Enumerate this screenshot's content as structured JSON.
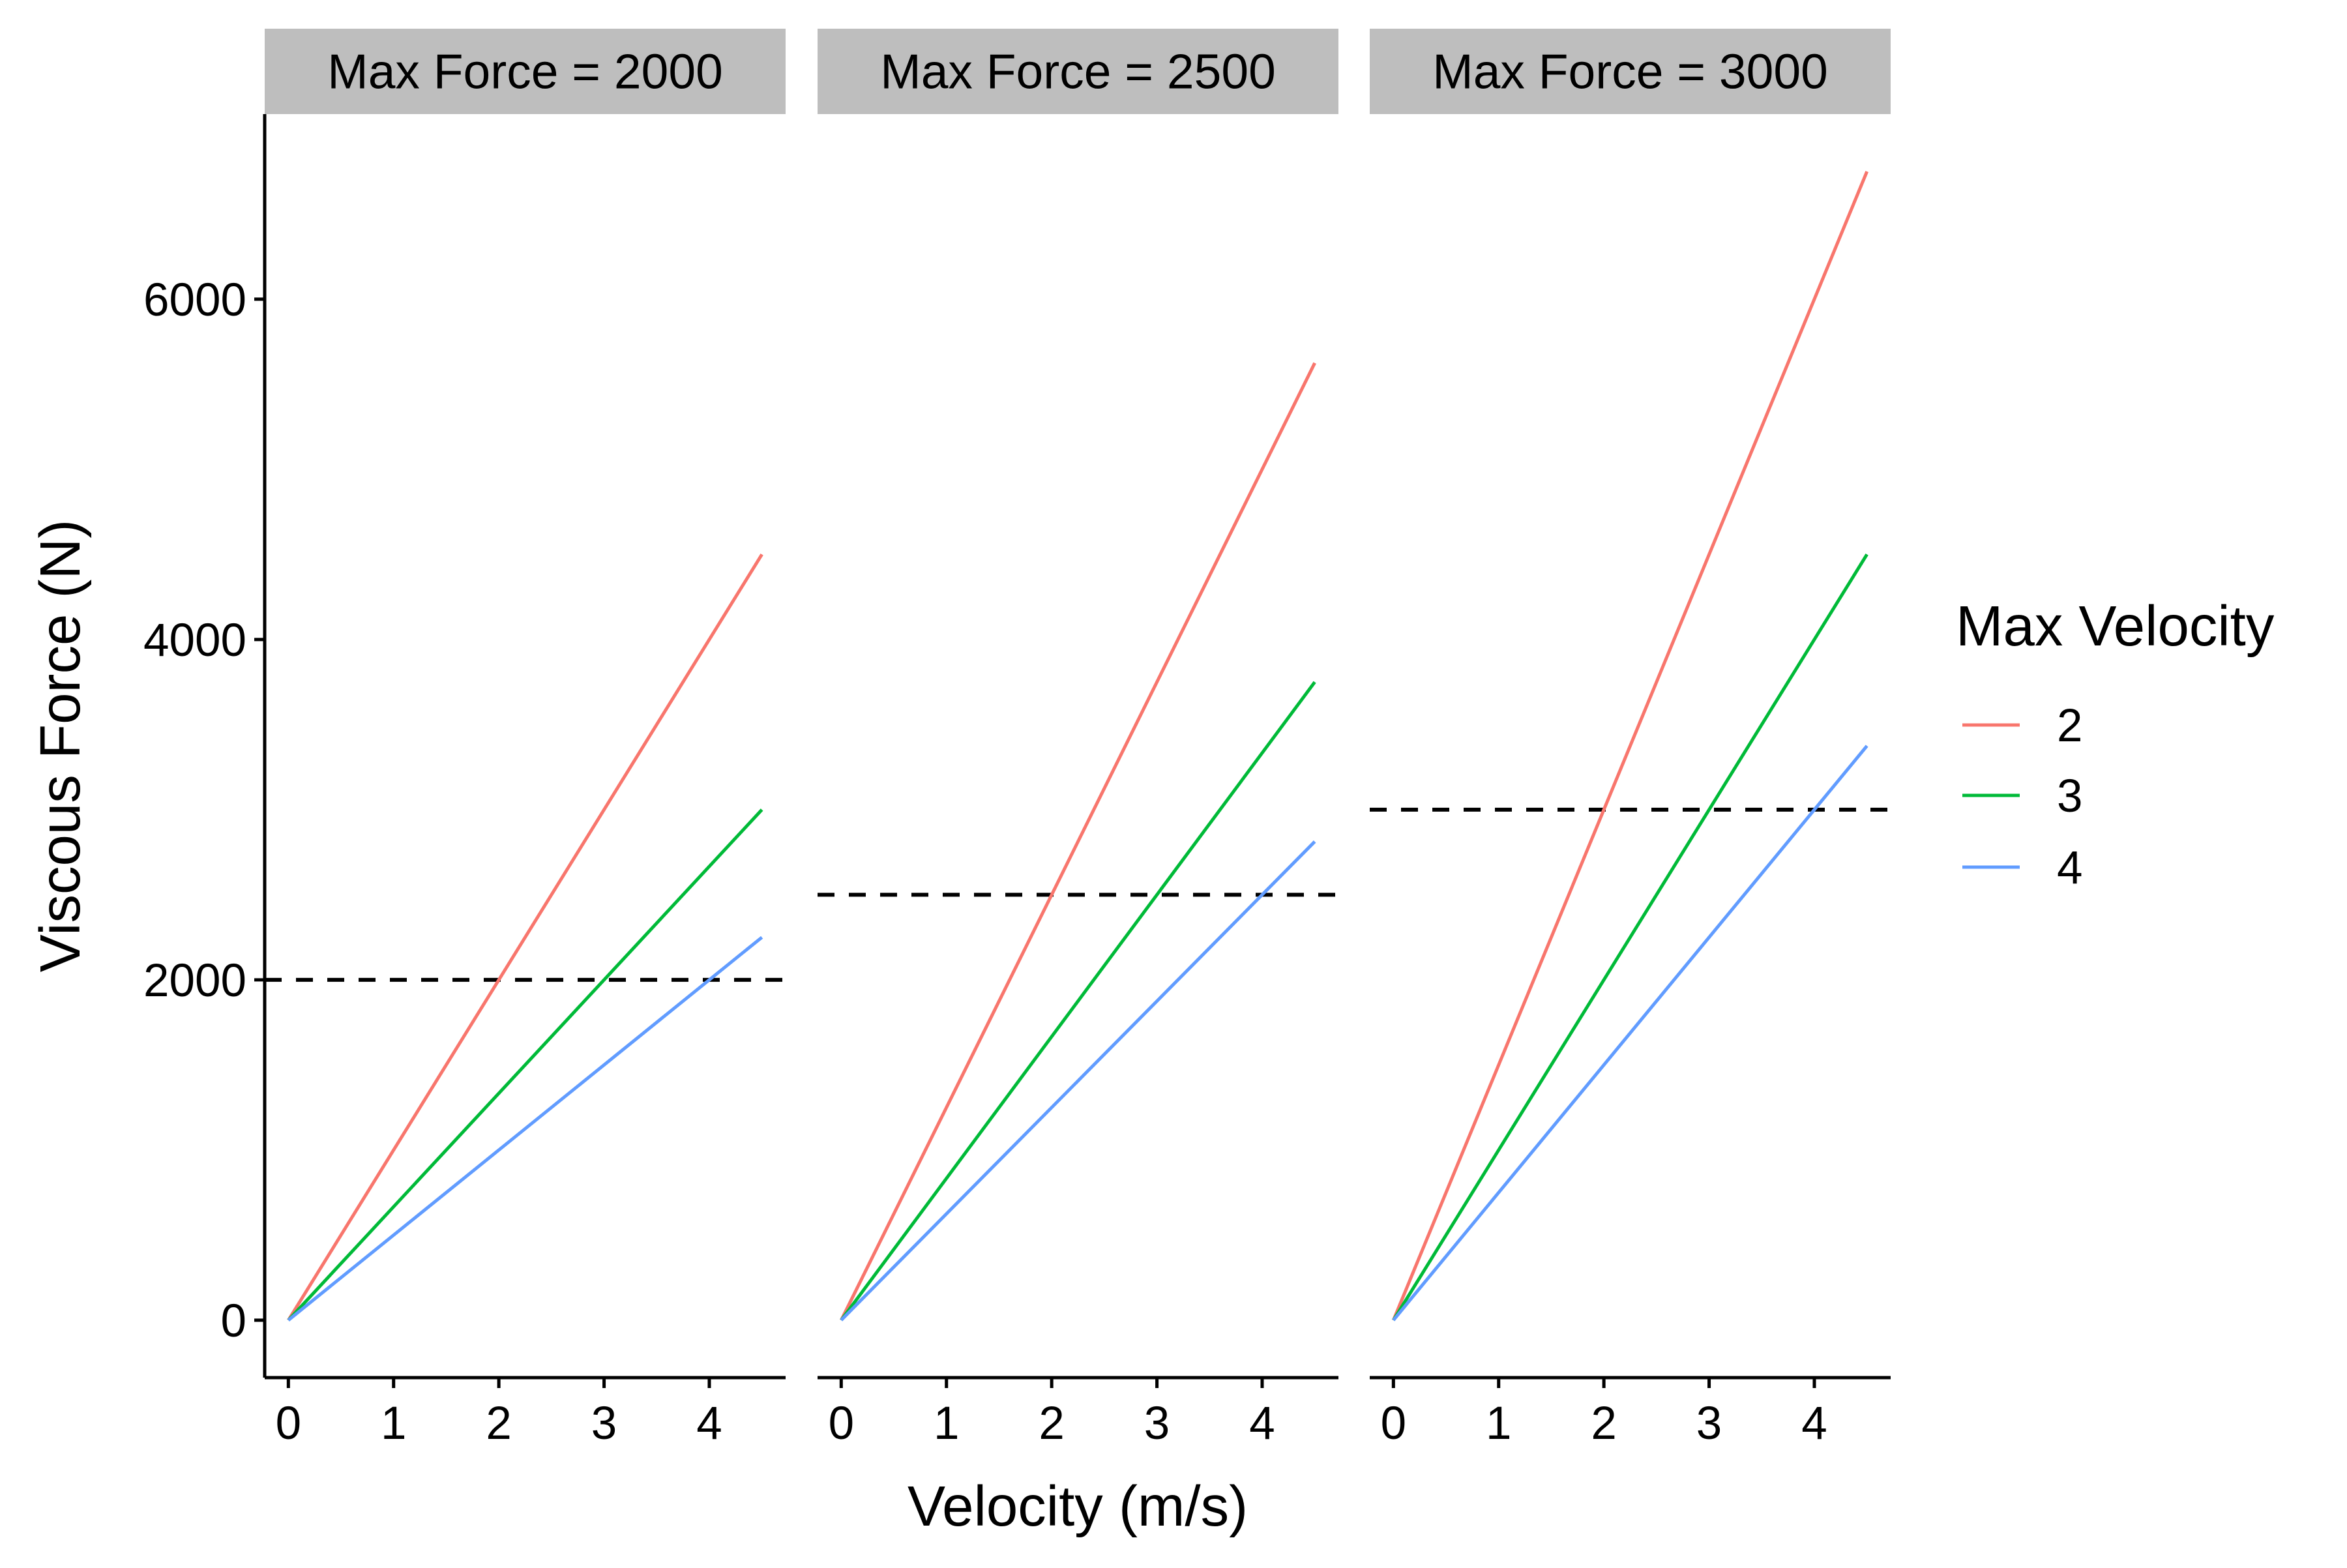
{
  "chart_data": {
    "type": "line",
    "xlabel": "Velocity (m/s)",
    "ylabel": "Viscous Force (N)",
    "xlim": [
      -0.225,
      4.725
    ],
    "ylim": [
      -337.5,
      7087.5
    ],
    "x_ticks": [
      0,
      1,
      2,
      3,
      4
    ],
    "x_tick_labels": [
      "0",
      "1",
      "2",
      "3",
      "4"
    ],
    "y_ticks": [
      0,
      2000,
      4000,
      6000
    ],
    "y_tick_labels": [
      "0",
      "2000",
      "4000",
      "6000"
    ],
    "grid": false,
    "legend": {
      "title": "Max Velocity",
      "placement": "right",
      "entries": [
        {
          "label": "2",
          "color": "#F8766D"
        },
        {
          "label": "3",
          "color": "#00BA38"
        },
        {
          "label": "4",
          "color": "#619CFF"
        }
      ]
    },
    "facets": [
      {
        "strip": "Max Force =  2000",
        "reference_line": {
          "y": 2000,
          "style": "dashed",
          "color": "#000000"
        },
        "series": [
          {
            "name": "2",
            "color": "#F8766D",
            "x": [
              0,
              4.5
            ],
            "y": [
              0,
              4500
            ]
          },
          {
            "name": "3",
            "color": "#00BA38",
            "x": [
              0,
              4.5
            ],
            "y": [
              0,
              3000
            ]
          },
          {
            "name": "4",
            "color": "#619CFF",
            "x": [
              0,
              4.5
            ],
            "y": [
              0,
              2250
            ]
          }
        ]
      },
      {
        "strip": "Max Force =  2500",
        "reference_line": {
          "y": 2500,
          "style": "dashed",
          "color": "#000000"
        },
        "series": [
          {
            "name": "2",
            "color": "#F8766D",
            "x": [
              0,
              4.5
            ],
            "y": [
              0,
              5625
            ]
          },
          {
            "name": "3",
            "color": "#00BA38",
            "x": [
              0,
              4.5
            ],
            "y": [
              0,
              3750
            ]
          },
          {
            "name": "4",
            "color": "#619CFF",
            "x": [
              0,
              4.5
            ],
            "y": [
              0,
              2812.5
            ]
          }
        ]
      },
      {
        "strip": "Max Force =  3000",
        "reference_line": {
          "y": 3000,
          "style": "dashed",
          "color": "#000000"
        },
        "series": [
          {
            "name": "2",
            "color": "#F8766D",
            "x": [
              0,
              4.5
            ],
            "y": [
              0,
              6750
            ]
          },
          {
            "name": "3",
            "color": "#00BA38",
            "x": [
              0,
              4.5
            ],
            "y": [
              0,
              4500
            ]
          },
          {
            "name": "4",
            "color": "#619CFF",
            "x": [
              0,
              4.5
            ],
            "y": [
              0,
              3375
            ]
          }
        ]
      }
    ]
  },
  "colors": {
    "strip_background": "#BEBEBE",
    "axis_line": "#000000",
    "background": "#FFFFFF"
  }
}
